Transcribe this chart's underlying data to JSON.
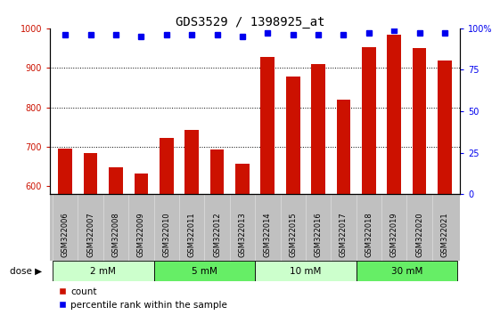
{
  "title": "GDS3529 / 1398925_at",
  "categories": [
    "GSM322006",
    "GSM322007",
    "GSM322008",
    "GSM322009",
    "GSM322010",
    "GSM322011",
    "GSM322012",
    "GSM322013",
    "GSM322014",
    "GSM322015",
    "GSM322016",
    "GSM322017",
    "GSM322018",
    "GSM322019",
    "GSM322020",
    "GSM322021"
  ],
  "counts": [
    695,
    683,
    648,
    633,
    723,
    743,
    693,
    657,
    928,
    878,
    910,
    820,
    952,
    983,
    950,
    918
  ],
  "percentiles": [
    96,
    96,
    96,
    95,
    96,
    96,
    96,
    95,
    97,
    96,
    96,
    96,
    97,
    99,
    97,
    97
  ],
  "ylim_left": [
    580,
    1000
  ],
  "ylim_right": [
    0,
    100
  ],
  "yticks_left": [
    600,
    700,
    800,
    900,
    1000
  ],
  "yticks_right": [
    0,
    25,
    50,
    75,
    100
  ],
  "ytick_labels_right": [
    "0",
    "25",
    "50",
    "75",
    "100%"
  ],
  "bar_color": "#cc1100",
  "dot_color": "#0000ee",
  "bar_width": 0.55,
  "dose_groups": [
    {
      "label": "2 mM",
      "start": 0,
      "end": 4,
      "color": "#ccffcc"
    },
    {
      "label": "5 mM",
      "start": 4,
      "end": 8,
      "color": "#66ee66"
    },
    {
      "label": "10 mM",
      "start": 8,
      "end": 12,
      "color": "#ccffcc"
    },
    {
      "label": "30 mM",
      "start": 12,
      "end": 16,
      "color": "#66ee66"
    }
  ],
  "dose_label": "dose",
  "legend_count_label": "count",
  "legend_pct_label": "percentile rank within the sample",
  "title_fontsize": 10,
  "tick_fontsize": 6.5,
  "axis_color_left": "#cc1100",
  "axis_color_right": "#0000ee",
  "grid_color": "#000000",
  "sample_bg_color": "#c0c0c0",
  "plot_bg_color": "#ffffff"
}
